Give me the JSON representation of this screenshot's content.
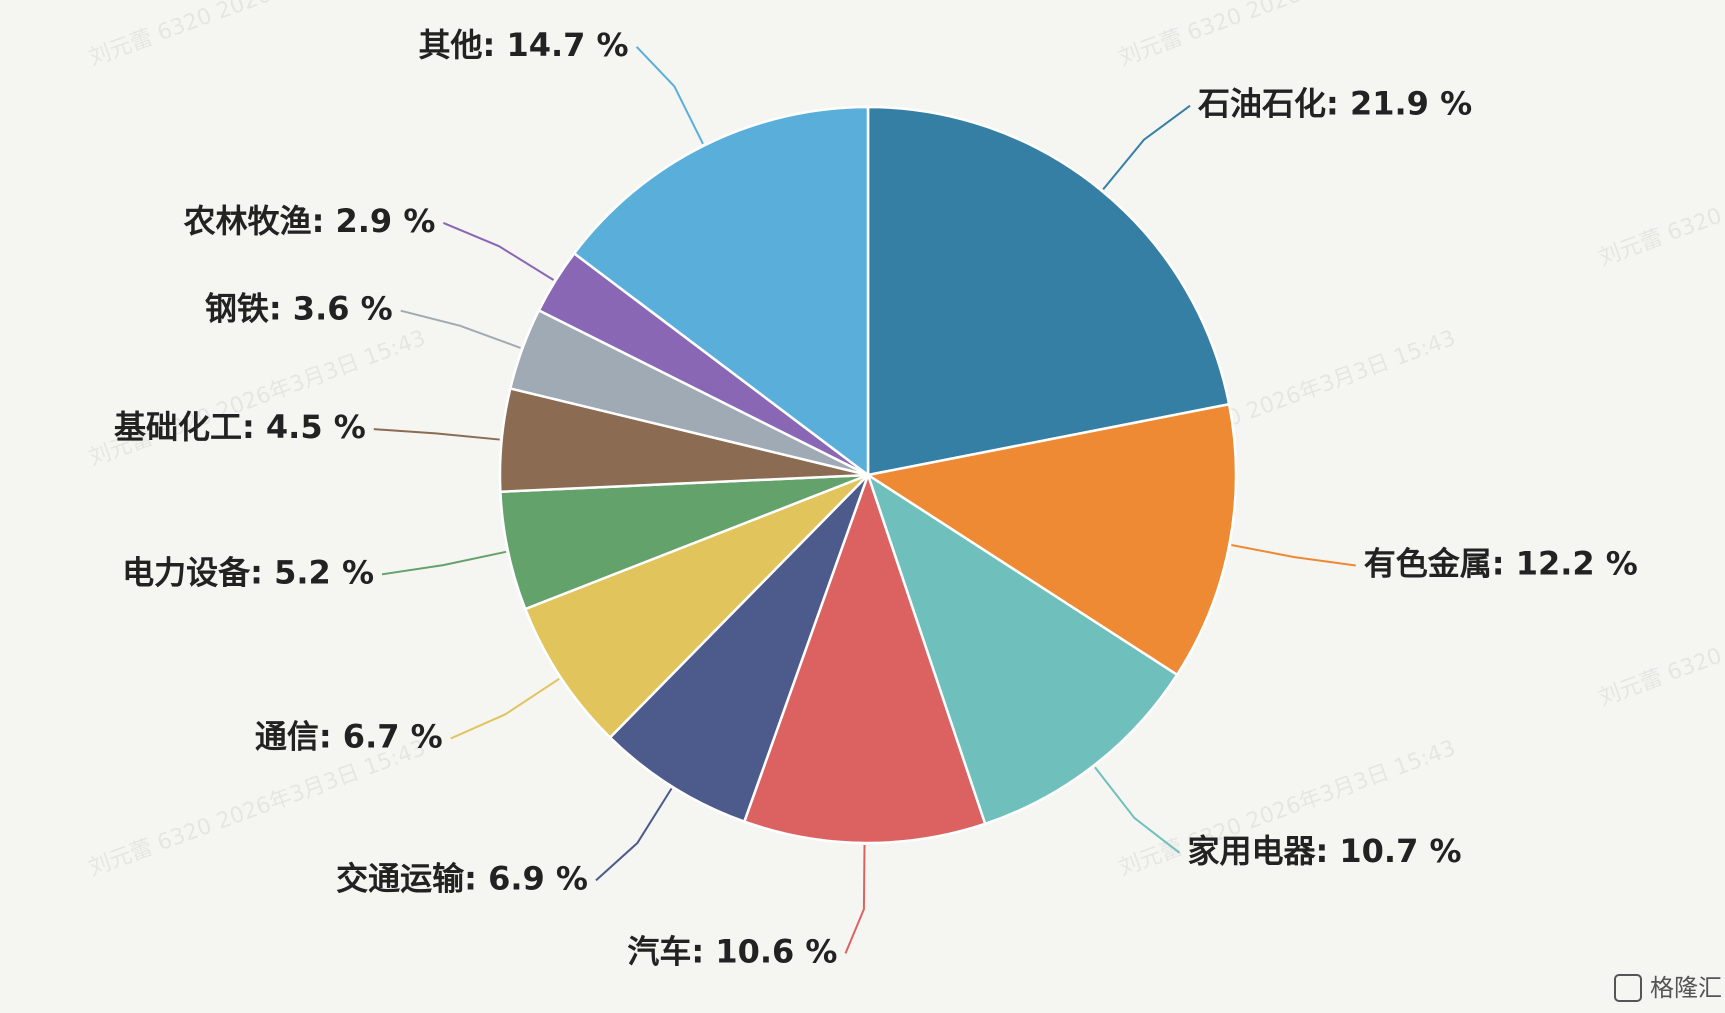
{
  "chart_data": {
    "type": "pie",
    "values": [
      21.9,
      12.2,
      10.7,
      10.6,
      6.9,
      6.7,
      5.2,
      4.5,
      3.6,
      2.9,
      14.7
    ],
    "value_labels": [
      "石油石化: 21.9 %",
      "有色金属: 12.2 %",
      "家用电器: 10.7 %",
      "汽车: 10.6 %",
      "交通运输: 6.9 %",
      "通信: 6.7 %",
      "电力设备: 5.2 %",
      "基础化工: 4.5 %",
      "钢铁: 3.6 %",
      "农林牧渔: 2.9 %",
      "其他: 14.7 %"
    ],
    "colors": [
      "#367fa4",
      "#ee8a33",
      "#6fc0bc",
      "#dc6262",
      "#4c5a8c",
      "#e2c45c",
      "#64a26b",
      "#8b6b52",
      "#a0aab4",
      "#8a67b5",
      "#5aafda"
    ]
  },
  "watermark": "刘元蕾 6320 2026年3月3日 15:43",
  "logo": "格隆汇"
}
